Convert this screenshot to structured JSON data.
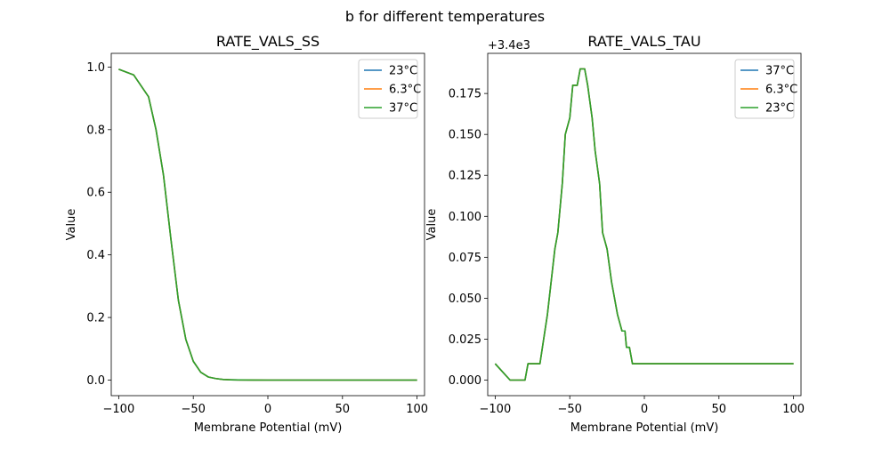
{
  "figure": {
    "suptitle": "b for different temperatures"
  },
  "chart_data": [
    {
      "type": "line",
      "title": "RATE_VALS_SS",
      "xlabel": "Membrane Potential (mV)",
      "ylabel": "Value",
      "xlim": [
        -105,
        105
      ],
      "ylim": [
        -0.0497,
        1.0437
      ],
      "xticks": [
        -100,
        -50,
        0,
        50,
        100
      ],
      "xtick_labels": [
        "−100",
        "−50",
        "0",
        "50",
        "100"
      ],
      "yticks": [
        0.0,
        0.2,
        0.4,
        0.6,
        0.8,
        1.0
      ],
      "ytick_labels": [
        "0.0",
        "0.2",
        "0.4",
        "0.6",
        "0.8",
        "1.0"
      ],
      "offset_text": "",
      "legend_position": "top-right",
      "grid": false,
      "x": [
        -100,
        -90,
        -80,
        -75,
        -70,
        -65,
        -60,
        -55,
        -50,
        -45,
        -40,
        -35,
        -30,
        -25,
        -20,
        -10,
        0,
        20,
        50,
        100
      ],
      "series": [
        {
          "name": "23°C",
          "color": "#1f77b4",
          "values": [
            0.993,
            0.975,
            0.905,
            0.8,
            0.655,
            0.45,
            0.255,
            0.13,
            0.06,
            0.025,
            0.01,
            0.005,
            0.002,
            0.001,
            0.0005,
            0.0001,
            0.0,
            0.0,
            0.0,
            0.0
          ]
        },
        {
          "name": "6.3°C",
          "color": "#ff7f0e",
          "values": [
            0.993,
            0.975,
            0.905,
            0.8,
            0.655,
            0.45,
            0.255,
            0.13,
            0.06,
            0.025,
            0.01,
            0.005,
            0.002,
            0.001,
            0.0005,
            0.0001,
            0.0,
            0.0,
            0.0,
            0.0
          ]
        },
        {
          "name": "37°C",
          "color": "#2ca02c",
          "values": [
            0.993,
            0.975,
            0.905,
            0.8,
            0.655,
            0.45,
            0.255,
            0.13,
            0.06,
            0.025,
            0.01,
            0.005,
            0.002,
            0.001,
            0.0005,
            0.0001,
            0.0,
            0.0,
            0.0,
            0.0
          ]
        }
      ]
    },
    {
      "type": "line",
      "title": "RATE_VALS_TAU",
      "xlabel": "Membrane Potential (mV)",
      "ylabel": "Value",
      "xlim": [
        -105,
        105
      ],
      "ylim": [
        -0.0095,
        0.1995
      ],
      "xticks": [
        -100,
        -50,
        0,
        50,
        100
      ],
      "xtick_labels": [
        "−100",
        "−50",
        "0",
        "50",
        "100"
      ],
      "yticks": [
        0.0,
        0.025,
        0.05,
        0.075,
        0.1,
        0.125,
        0.15,
        0.175
      ],
      "ytick_labels": [
        "0.000",
        "0.025",
        "0.050",
        "0.075",
        "0.100",
        "0.125",
        "0.150",
        "0.175"
      ],
      "offset_text": "+3.4e3",
      "legend_position": "top-right",
      "grid": false,
      "x": [
        -100,
        -95,
        -90,
        -85,
        -80,
        -78,
        -75,
        -70,
        -65,
        -60,
        -58,
        -55,
        -53,
        -50,
        -48,
        -45,
        -43,
        -40,
        -38,
        -35,
        -33,
        -30,
        -28,
        -25,
        -22,
        -20,
        -18,
        -15,
        -13,
        -12,
        -10,
        -8,
        0,
        50,
        100
      ],
      "series": [
        {
          "name": "37°C",
          "color": "#1f77b4",
          "values": [
            0.01,
            0.005,
            0.0,
            0.0,
            0.0,
            0.01,
            0.01,
            0.01,
            0.04,
            0.08,
            0.09,
            0.12,
            0.15,
            0.16,
            0.18,
            0.18,
            0.19,
            0.19,
            0.18,
            0.16,
            0.14,
            0.12,
            0.09,
            0.08,
            0.06,
            0.05,
            0.04,
            0.03,
            0.03,
            0.02,
            0.02,
            0.01,
            0.01,
            0.01,
            0.01
          ]
        },
        {
          "name": "6.3°C",
          "color": "#ff7f0e",
          "values": [
            0.01,
            0.005,
            0.0,
            0.0,
            0.0,
            0.01,
            0.01,
            0.01,
            0.04,
            0.08,
            0.09,
            0.12,
            0.15,
            0.16,
            0.18,
            0.18,
            0.19,
            0.19,
            0.18,
            0.16,
            0.14,
            0.12,
            0.09,
            0.08,
            0.06,
            0.05,
            0.04,
            0.03,
            0.03,
            0.02,
            0.02,
            0.01,
            0.01,
            0.01,
            0.01
          ]
        },
        {
          "name": "23°C",
          "color": "#2ca02c",
          "values": [
            0.01,
            0.005,
            0.0,
            0.0,
            0.0,
            0.01,
            0.01,
            0.01,
            0.04,
            0.08,
            0.09,
            0.12,
            0.15,
            0.16,
            0.18,
            0.18,
            0.19,
            0.19,
            0.18,
            0.16,
            0.14,
            0.12,
            0.09,
            0.08,
            0.06,
            0.05,
            0.04,
            0.03,
            0.03,
            0.02,
            0.02,
            0.01,
            0.01,
            0.01,
            0.01
          ]
        }
      ]
    }
  ]
}
